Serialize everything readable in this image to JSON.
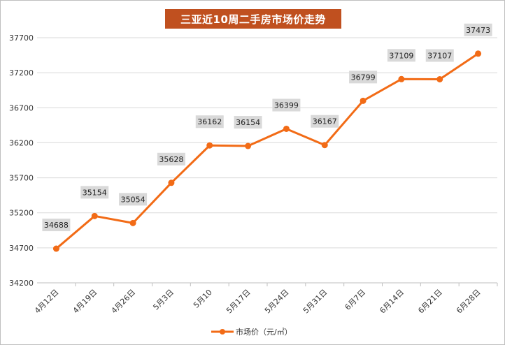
{
  "colors": {
    "series": "#f26b16",
    "title_bg": "#c0501f",
    "label_bg": "#d9d9d9",
    "grid": "#d9d9d9"
  },
  "chart_data": {
    "type": "line",
    "title": "三亚近10周二手房市场价走势",
    "categories": [
      "4月12日",
      "4月19日",
      "4月26日",
      "5月3日",
      "5月10",
      "5月17日",
      "5月24日",
      "5月31日",
      "6月7日",
      "6月14日",
      "6月21日",
      "6月28日"
    ],
    "series": [
      {
        "name": "市场价（元/㎡）",
        "values": [
          34688,
          35154,
          35054,
          35628,
          36162,
          36154,
          36399,
          36167,
          36799,
          37109,
          37107,
          37473
        ]
      }
    ],
    "yticks": [
      34200,
      34700,
      35200,
      35700,
      36200,
      36700,
      37200,
      37700
    ],
    "ylim": [
      34200,
      37700
    ],
    "grid": true,
    "legend_position": "bottom",
    "data_labels": true
  }
}
